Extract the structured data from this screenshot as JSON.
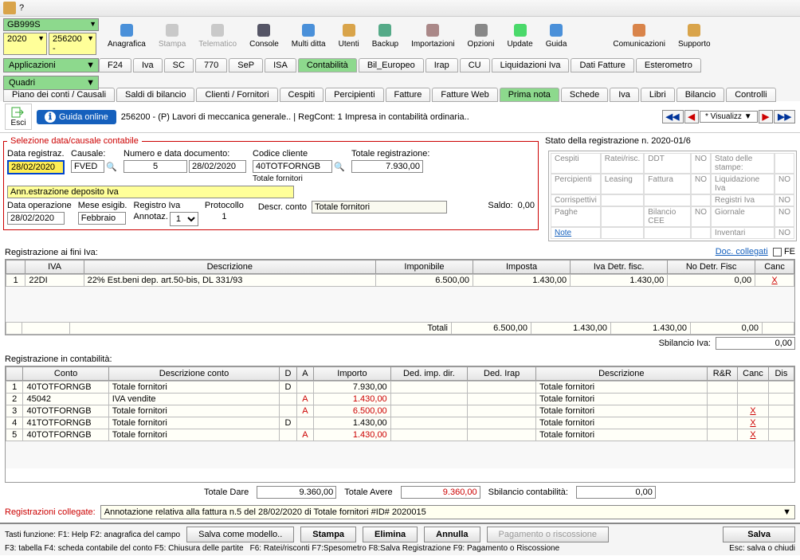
{
  "title": "?",
  "selectors": {
    "code": "GB999S",
    "year": "2020",
    "sub": "256200 -"
  },
  "section_labels": {
    "app": "Applicazioni",
    "quadri": "Quadri"
  },
  "toolbar": [
    {
      "label": "Anagrafica",
      "icon": "#4a90d9"
    },
    {
      "label": "Stampa",
      "icon": "#888",
      "disabled": true
    },
    {
      "label": "Telematico",
      "icon": "#888",
      "disabled": true
    },
    {
      "label": "Console",
      "icon": "#556"
    },
    {
      "label": "Multi ditta",
      "icon": "#4a90d9"
    },
    {
      "label": "Utenti",
      "icon": "#d9a44a"
    },
    {
      "label": "Backup",
      "icon": "#5a8"
    },
    {
      "label": "Importazioni",
      "icon": "#a88"
    },
    {
      "label": "Opzioni",
      "icon": "#888"
    },
    {
      "label": "Update",
      "icon": "#4ad96a"
    },
    {
      "label": "Guida",
      "icon": "#4a90d9"
    },
    {
      "label": "Comunicazioni",
      "icon": "#d9844a"
    },
    {
      "label": "Supporto",
      "icon": "#d9a44a"
    }
  ],
  "tabs_row1": [
    "F24",
    "Iva",
    "SC",
    "770",
    "SeP",
    "ISA",
    "Contabilità",
    "Bil_Europeo",
    "Irap",
    "CU",
    "Liquidazioni Iva",
    "Dati Fatture",
    "Esterometro"
  ],
  "tabs_row1_active": "Contabilità",
  "tabs_row2": [
    "Piano dei conti / Causali",
    "Saldi di bilancio",
    "Clienti / Fornitori",
    "Cespiti",
    "Percipienti",
    "Fatture",
    "Fatture Web",
    "Prima nota",
    "Schede",
    "Iva",
    "Libri",
    "Bilancio",
    "Controlli"
  ],
  "tabs_row2_active": "Prima nota",
  "esci": "Esci",
  "guida_online": "Guida online",
  "header_text": "256200 - (P) Lavori di meccanica generale.. | RegCont: 1 Impresa  in contabilità ordinaria..",
  "visualizz": "* Visualizz",
  "fieldset_title": "Selezione data/causale contabile",
  "form": {
    "data_reg_lbl": "Data registraz.",
    "data_reg": "28/02/2020",
    "causale_lbl": "Causale:",
    "causale": "FVED",
    "num_doc_lbl": "Numero e data documento:",
    "num_doc": "5",
    "data_doc": "28/02/2020",
    "desc": "Ann.estrazione deposito Iva",
    "data_op_lbl": "Data operazione",
    "data_op": "28/02/2020",
    "mese_lbl": "Mese esigib.",
    "mese": "Febbraio",
    "reg_iva_lbl": "Registro Iva",
    "annotaz_lbl": "Annotaz.",
    "annotaz": "1",
    "protocollo_lbl": "Protocollo",
    "protocollo": "1",
    "cod_cliente_lbl": "Codice cliente",
    "cod_cliente": "40TOTFORNGB",
    "tot_forn_lbl": "Totale fornitori",
    "tot_reg_lbl": "Totale registrazione:",
    "tot_reg": "7.930,00",
    "saldo_lbl": "Saldo:",
    "saldo": "0,00",
    "descr_conto_lbl": "Descr. conto",
    "descr_conto": "Totale fornitori"
  },
  "stato_title": "Stato della registrazione n. 2020-01/6",
  "stato": {
    "rows": [
      [
        "Cespiti",
        "Ratei/risc.",
        "DDT",
        "NO",
        "Stato delle stampe:",
        ""
      ],
      [
        "Percipienti",
        "Leasing",
        "Fattura",
        "NO",
        "Liquidazione Iva",
        "NO"
      ],
      [
        "Corrispettivi",
        "",
        "",
        "",
        "Registri Iva",
        "NO"
      ],
      [
        "Paghe",
        "",
        "Bilancio CEE",
        "NO",
        "Giornale",
        "NO"
      ],
      [
        "Note",
        "",
        "",
        "",
        "Inventari",
        "NO"
      ]
    ]
  },
  "reg_iva_title": "Registrazione ai fini Iva:",
  "doc_collegati": "Doc. collegati",
  "fe": "FE",
  "iva_cols": [
    "",
    "IVA",
    "Descrizione",
    "Imponibile",
    "Imposta",
    "Iva Detr. fisc.",
    "No Detr. Fisc",
    "Canc"
  ],
  "iva_rows": [
    {
      "n": "1",
      "iva": "22DI",
      "desc": "22% Est.beni dep. art.50-bis, DL 331/93",
      "imp": "6.500,00",
      "imposta": "1.430,00",
      "detr": "1.430,00",
      "nodetr": "0,00",
      "canc": "X"
    }
  ],
  "iva_totali_lbl": "Totali",
  "iva_totali": {
    "imp": "6.500,00",
    "imposta": "1.430,00",
    "detr": "1.430,00",
    "nodetr": "0,00"
  },
  "sbilancio_iva_lbl": "Sbilancio Iva:",
  "sbilancio_iva": "0,00",
  "reg_cont_title": "Registrazione in contabilità:",
  "cont_cols": [
    "",
    "Conto",
    "Descrizione conto",
    "D",
    "A",
    "Importo",
    "Ded. imp. dir.",
    "Ded. Irap",
    "Descrizione",
    "R&R",
    "Canc",
    "Dis"
  ],
  "cont_rows": [
    {
      "n": "1",
      "conto": "40TOTFORNGB",
      "desc": "Totale fornitori",
      "d": "D",
      "a": "",
      "imp": "7.930,00",
      "ded1": "",
      "ded2": "",
      "d2": "Totale fornitori",
      "rr": "",
      "canc": "",
      "dis": ""
    },
    {
      "n": "2",
      "conto": "45042",
      "desc": "IVA vendite",
      "d": "",
      "a": "A",
      "imp": "1.430,00",
      "red": true,
      "ded1": "",
      "ded2": "",
      "d2": "Totale fornitori",
      "rr": "",
      "canc": "",
      "dis": ""
    },
    {
      "n": "3",
      "conto": "40TOTFORNGB",
      "desc": "Totale fornitori",
      "d": "",
      "a": "A",
      "imp": "6.500,00",
      "red": true,
      "ded1": "",
      "ded2": "",
      "d2": "Totale fornitori",
      "rr": "",
      "canc": "X",
      "dis": ""
    },
    {
      "n": "4",
      "conto": "41TOTFORNGB",
      "desc": "Totale fornitori",
      "d": "D",
      "a": "",
      "imp": "1.430,00",
      "ded1": "",
      "ded2": "",
      "d2": "Totale fornitori",
      "rr": "",
      "canc": "X",
      "dis": ""
    },
    {
      "n": "5",
      "conto": "40TOTFORNGB",
      "desc": "Totale fornitori",
      "d": "",
      "a": "A",
      "imp": "1.430,00",
      "red": true,
      "ded1": "",
      "ded2": "",
      "d2": "Totale fornitori",
      "rr": "",
      "canc": "X",
      "dis": ""
    }
  ],
  "tot_dare_lbl": "Totale Dare",
  "tot_dare": "9.360,00",
  "tot_avere_lbl": "Totale Avere",
  "tot_avere": "9.360,00",
  "sbilancio_cont_lbl": "Sbilancio contabilità:",
  "sbilancio_cont": "0,00",
  "collegate_lbl": "Registrazioni collegate:",
  "collegate_val": "Annotazione relativa alla fattura n.5 del 28/02/2020 di Totale fornitori #ID# 2020015",
  "footer": {
    "tasti": "Tasti funzione:  F1: Help   F2: anagrafica del campo",
    "salva_modello": "Salva come modello..",
    "stampa": "Stampa",
    "elimina": "Elimina",
    "annulla": "Annulla",
    "pagamento": "Pagamento o riscossione",
    "salva": "Salva",
    "f3": "F3: tabella   F4: scheda contabile del conto   F5: Chiusura delle partite",
    "f6": "F6: Ratei/risconti   F7:Spesometro   F8:Salva Registrazione   F9: Pagamento o Riscossione",
    "esc": "Esc: salva o chiudi"
  }
}
